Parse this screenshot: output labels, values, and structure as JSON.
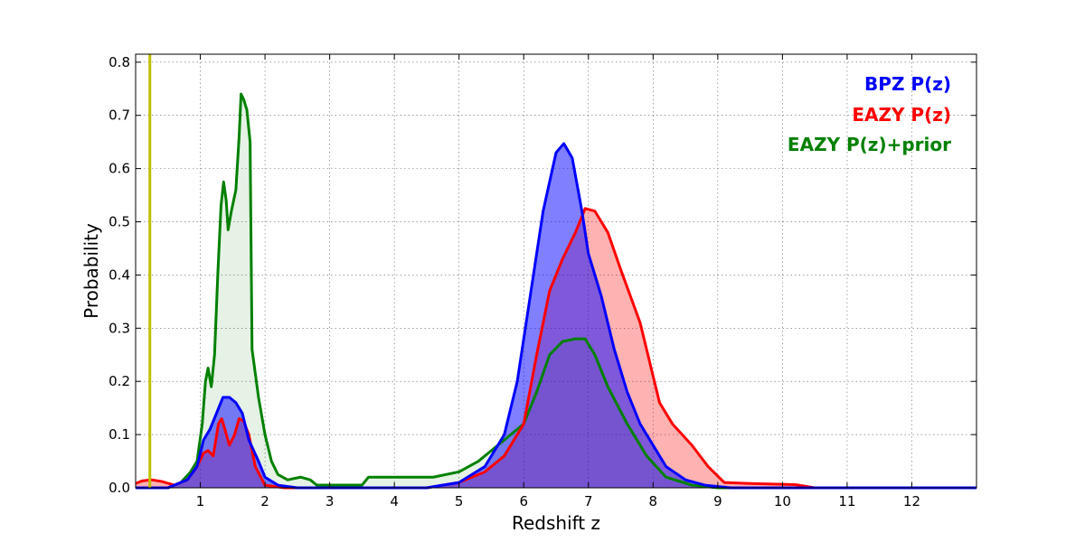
{
  "chart_data": {
    "type": "area",
    "xlabel": "Redshift z",
    "ylabel": "Probability",
    "xlim": [
      0,
      13
    ],
    "ylim": [
      0,
      0.815
    ],
    "x_ticks": [
      1,
      2,
      3,
      4,
      5,
      6,
      7,
      8,
      9,
      10,
      11,
      12
    ],
    "y_ticks": [
      0.0,
      0.1,
      0.2,
      0.3,
      0.4,
      0.5,
      0.6,
      0.7,
      0.8
    ],
    "y_tick_labels": [
      "0.0",
      "0.1",
      "0.2",
      "0.3",
      "0.4",
      "0.5",
      "0.6",
      "0.7",
      "0.8"
    ],
    "grid": true,
    "legend_placement": "top-right",
    "vertical_line": {
      "x": 0.22,
      "color": "#bfbf00"
    },
    "series": [
      {
        "name": "BPZ P(z)",
        "color": "#0000ff",
        "fill": "#0000ff",
        "fill_alpha": 0.5,
        "points": [
          [
            0.0,
            0.0
          ],
          [
            0.5,
            0.0
          ],
          [
            0.8,
            0.015
          ],
          [
            0.95,
            0.04
          ],
          [
            1.05,
            0.09
          ],
          [
            1.15,
            0.11
          ],
          [
            1.25,
            0.14
          ],
          [
            1.35,
            0.17
          ],
          [
            1.45,
            0.17
          ],
          [
            1.55,
            0.16
          ],
          [
            1.65,
            0.14
          ],
          [
            1.75,
            0.09
          ],
          [
            1.9,
            0.05
          ],
          [
            2.0,
            0.02
          ],
          [
            2.2,
            0.005
          ],
          [
            2.5,
            0.0
          ],
          [
            4.5,
            0.0
          ],
          [
            5.0,
            0.01
          ],
          [
            5.4,
            0.04
          ],
          [
            5.7,
            0.1
          ],
          [
            5.9,
            0.2
          ],
          [
            6.1,
            0.36
          ],
          [
            6.3,
            0.52
          ],
          [
            6.5,
            0.63
          ],
          [
            6.62,
            0.647
          ],
          [
            6.75,
            0.62
          ],
          [
            6.9,
            0.52
          ],
          [
            7.0,
            0.44
          ],
          [
            7.2,
            0.36
          ],
          [
            7.4,
            0.26
          ],
          [
            7.6,
            0.18
          ],
          [
            7.8,
            0.12
          ],
          [
            8.0,
            0.08
          ],
          [
            8.2,
            0.04
          ],
          [
            8.5,
            0.015
          ],
          [
            8.8,
            0.005
          ],
          [
            9.2,
            0.0
          ],
          [
            13.0,
            0.0
          ]
        ]
      },
      {
        "name": "EAZY P(z)",
        "color": "#ff0000",
        "fill": "#ff0000",
        "fill_alpha": 0.3,
        "points": [
          [
            0.0,
            0.008
          ],
          [
            0.1,
            0.013
          ],
          [
            0.25,
            0.015
          ],
          [
            0.4,
            0.012
          ],
          [
            0.6,
            0.005
          ],
          [
            0.8,
            0.015
          ],
          [
            0.95,
            0.04
          ],
          [
            1.05,
            0.065
          ],
          [
            1.12,
            0.07
          ],
          [
            1.2,
            0.06
          ],
          [
            1.28,
            0.12
          ],
          [
            1.33,
            0.13
          ],
          [
            1.38,
            0.11
          ],
          [
            1.45,
            0.08
          ],
          [
            1.53,
            0.1
          ],
          [
            1.6,
            0.13
          ],
          [
            1.67,
            0.125
          ],
          [
            1.75,
            0.1
          ],
          [
            1.85,
            0.04
          ],
          [
            2.0,
            0.005
          ],
          [
            2.3,
            0.0
          ],
          [
            4.5,
            0.0
          ],
          [
            5.0,
            0.01
          ],
          [
            5.4,
            0.03
          ],
          [
            5.7,
            0.06
          ],
          [
            6.0,
            0.12
          ],
          [
            6.2,
            0.25
          ],
          [
            6.4,
            0.37
          ],
          [
            6.6,
            0.43
          ],
          [
            6.8,
            0.48
          ],
          [
            6.95,
            0.525
          ],
          [
            7.1,
            0.52
          ],
          [
            7.3,
            0.48
          ],
          [
            7.5,
            0.41
          ],
          [
            7.8,
            0.31
          ],
          [
            8.1,
            0.16
          ],
          [
            8.3,
            0.12
          ],
          [
            8.6,
            0.08
          ],
          [
            8.85,
            0.04
          ],
          [
            9.1,
            0.01
          ],
          [
            9.5,
            0.008
          ],
          [
            10.2,
            0.006
          ],
          [
            10.5,
            0.0
          ],
          [
            13.0,
            0.0
          ]
        ]
      },
      {
        "name": "EAZY P(z)+prior",
        "color": "#008000",
        "fill": "#008000",
        "fill_alpha": 0.1,
        "points": [
          [
            0.0,
            0.0
          ],
          [
            0.5,
            0.0
          ],
          [
            0.7,
            0.01
          ],
          [
            0.85,
            0.03
          ],
          [
            0.95,
            0.05
          ],
          [
            1.03,
            0.12
          ],
          [
            1.08,
            0.2
          ],
          [
            1.12,
            0.225
          ],
          [
            1.17,
            0.19
          ],
          [
            1.22,
            0.25
          ],
          [
            1.27,
            0.4
          ],
          [
            1.32,
            0.53
          ],
          [
            1.36,
            0.575
          ],
          [
            1.4,
            0.54
          ],
          [
            1.43,
            0.485
          ],
          [
            1.48,
            0.52
          ],
          [
            1.55,
            0.56
          ],
          [
            1.6,
            0.66
          ],
          [
            1.63,
            0.74
          ],
          [
            1.67,
            0.73
          ],
          [
            1.72,
            0.71
          ],
          [
            1.77,
            0.65
          ],
          [
            1.8,
            0.26
          ],
          [
            1.9,
            0.17
          ],
          [
            2.0,
            0.1
          ],
          [
            2.1,
            0.05
          ],
          [
            2.2,
            0.025
          ],
          [
            2.35,
            0.015
          ],
          [
            2.55,
            0.02
          ],
          [
            2.7,
            0.015
          ],
          [
            2.8,
            0.005
          ],
          [
            3.2,
            0.005
          ],
          [
            3.5,
            0.005
          ],
          [
            3.6,
            0.02
          ],
          [
            3.8,
            0.02
          ],
          [
            4.2,
            0.02
          ],
          [
            4.6,
            0.02
          ],
          [
            5.0,
            0.03
          ],
          [
            5.3,
            0.05
          ],
          [
            5.6,
            0.08
          ],
          [
            5.8,
            0.1
          ],
          [
            6.0,
            0.12
          ],
          [
            6.2,
            0.18
          ],
          [
            6.4,
            0.25
          ],
          [
            6.6,
            0.275
          ],
          [
            6.8,
            0.28
          ],
          [
            6.95,
            0.28
          ],
          [
            7.1,
            0.25
          ],
          [
            7.3,
            0.19
          ],
          [
            7.6,
            0.12
          ],
          [
            7.9,
            0.06
          ],
          [
            8.2,
            0.02
          ],
          [
            8.6,
            0.005
          ],
          [
            9.0,
            0.0
          ],
          [
            13.0,
            0.0
          ]
        ]
      }
    ]
  }
}
